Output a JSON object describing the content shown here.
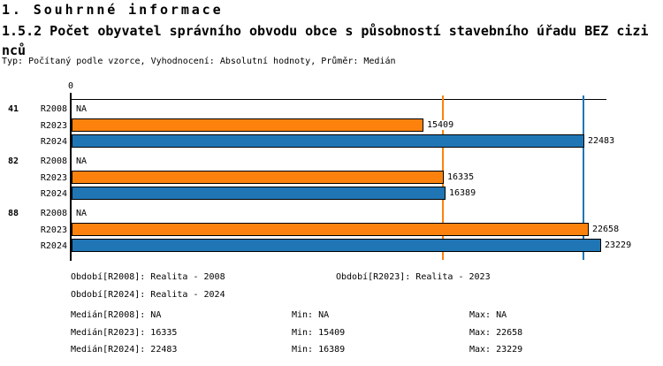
{
  "header": {
    "title": "1. Souhrnné informace",
    "subtitle": "1.5.2 Počet obyvatel správního obvodu obce s působností stavebního úřadu BEZ cizinců",
    "meta": "Typ: Počítaný podle vzorce, Vyhodnocení: Absolutní hodnoty, Průměr: Medián"
  },
  "chart_data": {
    "type": "bar",
    "orientation": "horizontal",
    "title": "1.5.2 Počet obyvatel správního obvodu obce s působností stavebního úřadu BEZ cizinců",
    "categories": [
      "41",
      "82",
      "88"
    ],
    "series": [
      {
        "name": "R2008",
        "values": [
          null,
          null,
          null
        ],
        "na_text": "NA",
        "color": "#000000"
      },
      {
        "name": "R2023",
        "values": [
          15409,
          16335,
          22658
        ],
        "color": "#FC820D"
      },
      {
        "name": "R2024",
        "values": [
          22483,
          16389,
          23229
        ],
        "color": "#2076B4"
      }
    ],
    "value_axis": {
      "origin_label": "0",
      "min": 0,
      "max_plotted": 23229
    },
    "reference_lines": [
      {
        "name": "median-R2023",
        "value": 16335,
        "color": "#FC820D"
      },
      {
        "name": "median-R2024",
        "value": 22483,
        "color": "#2076B4"
      }
    ],
    "legend": "none",
    "grid": "off"
  },
  "footer": {
    "periods": [
      [
        "Období[R2008]: Realita - 2008",
        "Období[R2023]: Realita - 2023"
      ],
      [
        "Období[R2024]: Realita - 2024"
      ]
    ],
    "stats": [
      [
        "Medián[R2008]: NA",
        "Min: NA",
        "Max: NA"
      ],
      [
        "Medián[R2023]: 16335",
        "Min: 15409",
        "Max: 22658"
      ],
      [
        "Medián[R2024]: 22483",
        "Min: 16389",
        "Max: 23229"
      ]
    ]
  }
}
